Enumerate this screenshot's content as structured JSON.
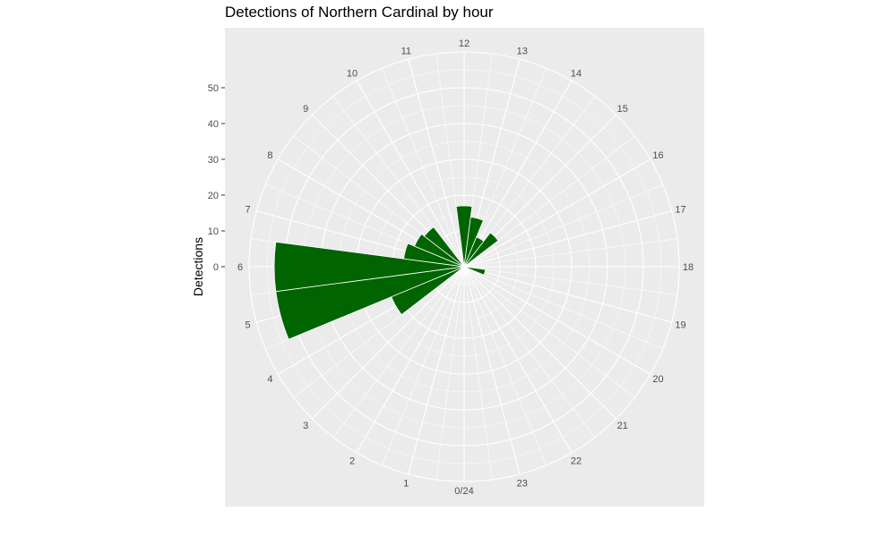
{
  "chart_data": {
    "type": "bar",
    "title": "Detections of Northern Cardinal by hour",
    "ylabel": "Detections",
    "xlabel": "",
    "ylim": [
      0,
      60
    ],
    "yticks": [
      0,
      10,
      20,
      30,
      40,
      50
    ],
    "hour_labels": [
      "0/24",
      "1",
      "2",
      "3",
      "4",
      "5",
      "6",
      "7",
      "8",
      "9",
      "10",
      "11",
      "12",
      "13",
      "14",
      "15",
      "16",
      "17",
      "18",
      "19",
      "20",
      "21",
      "22",
      "23"
    ],
    "categories": [
      0,
      1,
      2,
      3,
      4,
      5,
      6,
      7,
      8,
      9,
      10,
      11,
      12,
      13,
      14,
      15,
      16,
      17,
      18,
      19,
      20,
      21,
      22,
      23
    ],
    "values": [
      0,
      0,
      0,
      0,
      22,
      53,
      53,
      17,
      15,
      14,
      0,
      0,
      17,
      14,
      9,
      12,
      0,
      0,
      0,
      6,
      0,
      0,
      0,
      0
    ],
    "bar_color": "#006400",
    "panel_color": "#ebebeb",
    "grid_color": "#ffffff",
    "coord": "polar",
    "grid": true
  }
}
